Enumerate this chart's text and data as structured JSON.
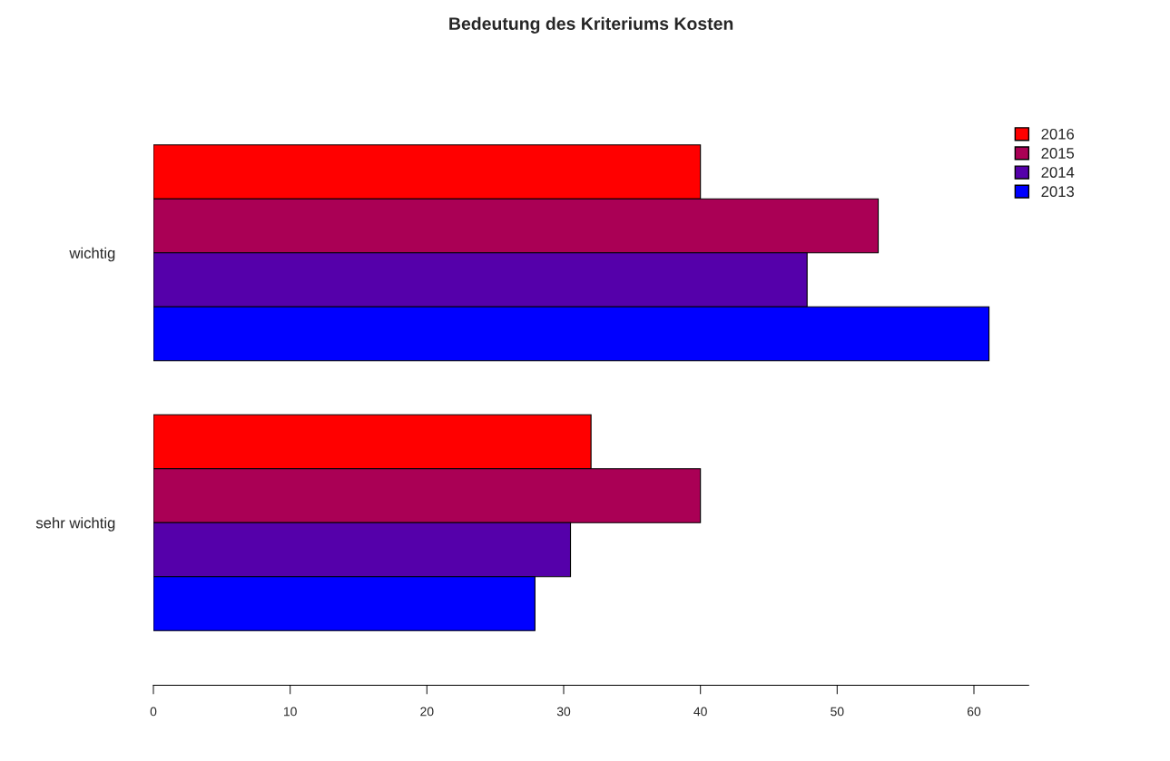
{
  "chart_data": {
    "type": "bar",
    "orientation": "horizontal",
    "title": "Bedeutung des Kriteriums Kosten",
    "categories": [
      "wichtig",
      "sehr wichtig"
    ],
    "series": [
      {
        "name": "2016",
        "color": "#ff0000",
        "values": [
          40.0,
          32.0
        ]
      },
      {
        "name": "2015",
        "color": "#aa0055",
        "values": [
          53.0,
          40.0
        ]
      },
      {
        "name": "2014",
        "color": "#5500aa",
        "values": [
          47.8,
          30.5
        ]
      },
      {
        "name": "2013",
        "color": "#0000ff",
        "values": [
          61.1,
          27.9
        ]
      }
    ],
    "xlim": [
      0,
      64
    ],
    "xticks": [
      0,
      10,
      20,
      30,
      40,
      50,
      60
    ],
    "grid": false,
    "legend": "top right"
  }
}
